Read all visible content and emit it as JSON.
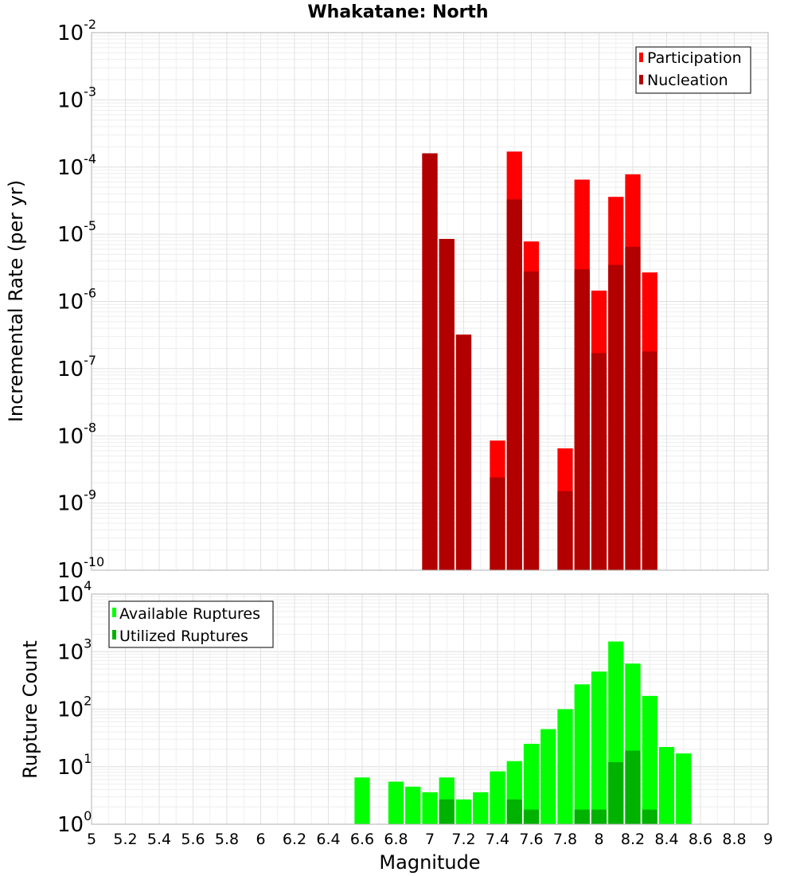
{
  "chart_data": [
    {
      "type": "bar",
      "title": "Whakatane: North",
      "xlabel": "",
      "ylabel": "Incremental Rate (per yr)",
      "y_scale": "log",
      "ylim": [
        1e-10,
        0.01
      ],
      "xlim": [
        5,
        9
      ],
      "bar_width": 0.1,
      "grid": true,
      "legend": {
        "position": "top-right"
      },
      "x": [
        7.0,
        7.1,
        7.2,
        7.4,
        7.5,
        7.6,
        7.8,
        7.9,
        8.0,
        8.1,
        8.2,
        8.3
      ],
      "series": [
        {
          "name": "Participation",
          "color": "#ff0000",
          "values": [
            0.00016,
            8.5e-06,
            3.2e-07,
            8.5e-09,
            0.00017,
            7.8e-06,
            6.5e-09,
            6.5e-05,
            1.45e-06,
            3.6e-05,
            7.8e-05,
            2.7e-06
          ]
        },
        {
          "name": "Nucleation",
          "color": "#b20000",
          "values": [
            0.00016,
            8.5e-06,
            3.2e-07,
            2.4e-09,
            3.3e-05,
            2.8e-06,
            1.5e-09,
            3e-06,
            1.7e-07,
            3.5e-06,
            6.5e-06,
            1.8e-07
          ]
        }
      ]
    },
    {
      "type": "bar",
      "title": "",
      "xlabel": "Magnitude",
      "ylabel": "Rupture Count",
      "y_scale": "log",
      "ylim": [
        1,
        10000
      ],
      "xlim": [
        5,
        9
      ],
      "bar_width": 0.1,
      "grid": true,
      "legend": {
        "position": "top-left"
      },
      "x": [
        6.6,
        6.8,
        6.9,
        7.0,
        7.1,
        7.2,
        7.3,
        7.4,
        7.5,
        7.6,
        7.7,
        7.8,
        7.9,
        8.0,
        8.1,
        8.2,
        8.3,
        8.4,
        8.5
      ],
      "series": [
        {
          "name": "Available Ruptures",
          "color": "#00ff00",
          "values": [
            6.5,
            5.5,
            4.5,
            3.6,
            6.5,
            2.7,
            3.6,
            8.3,
            12.5,
            25,
            45,
            100,
            270,
            450,
            1500,
            620,
            170,
            22,
            17
          ]
        },
        {
          "name": "Utilized Ruptures",
          "color": "#00b200",
          "values": [
            0,
            0,
            0,
            1,
            2.7,
            1,
            1,
            1,
            2.7,
            1.8,
            0,
            1,
            1.8,
            1.8,
            12,
            19,
            1.8,
            0,
            0
          ]
        }
      ]
    }
  ],
  "axis_ticks": {
    "x_labels": [
      "5",
      "5.2",
      "5.4",
      "5.6",
      "5.8",
      "6",
      "6.2",
      "6.4",
      "6.6",
      "6.8",
      "7",
      "7.2",
      "7.4",
      "7.6",
      "7.8",
      "8",
      "8.2",
      "8.4",
      "8.6",
      "8.8",
      "9"
    ],
    "top_y_exponents": [
      "-10",
      "-9",
      "-8",
      "-7",
      "-6",
      "-5",
      "-4",
      "-3",
      "-2"
    ],
    "bottom_y_exponents": [
      "0",
      "1",
      "2",
      "3",
      "4"
    ],
    "y_base": "10"
  }
}
